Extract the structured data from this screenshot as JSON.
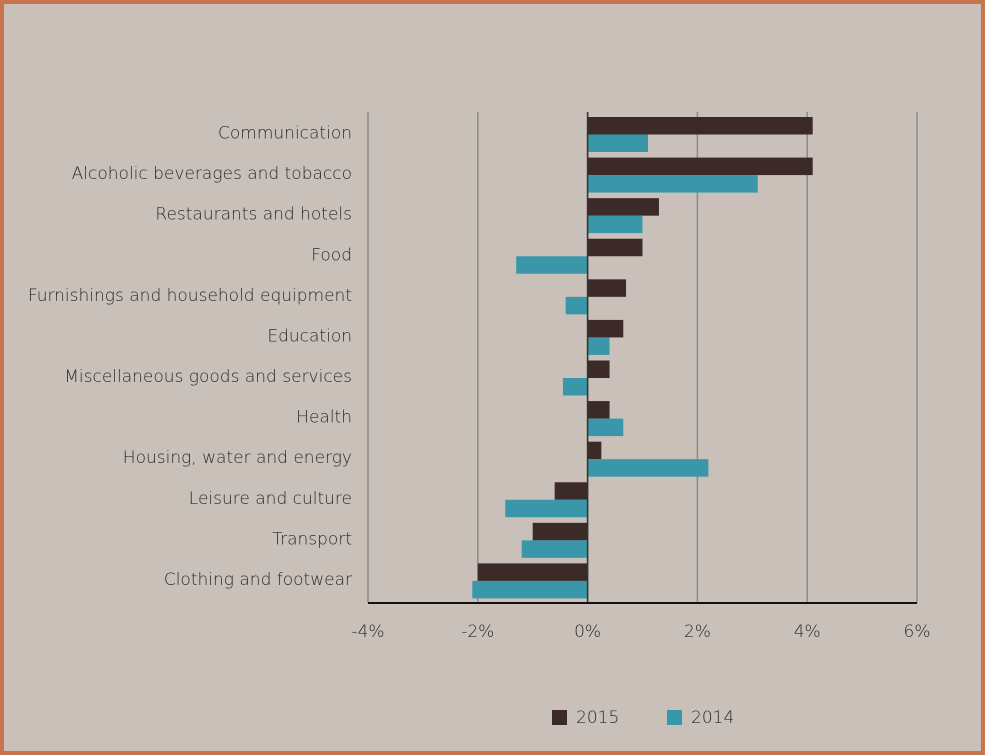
{
  "chart_data": {
    "type": "hbar",
    "categories": [
      "Communication",
      "Alcoholic beverages and tobacco",
      "Restaurants and hotels",
      "Food",
      "Furnishings and household equipment",
      "Education",
      "Miscellaneous goods and services",
      "Health",
      "Housing, water and energy",
      "Leisure and culture",
      "Transport",
      "Clothing and footwear"
    ],
    "series": [
      {
        "name": "2015",
        "color": "#3b2a28",
        "values": [
          4.1,
          4.1,
          1.3,
          1.0,
          0.7,
          0.65,
          0.4,
          0.4,
          0.25,
          -0.6,
          -1.0,
          -2.0
        ]
      },
      {
        "name": "2014",
        "color": "#3a97a9",
        "values": [
          1.1,
          3.1,
          1.0,
          -1.3,
          -0.4,
          0.4,
          -0.45,
          0.65,
          2.2,
          -1.5,
          -1.2,
          -2.1
        ]
      }
    ],
    "xlim": [
      -4,
      6
    ],
    "xticks": [
      {
        "value": -4,
        "label": "-4%"
      },
      {
        "value": -2,
        "label": "-2%"
      },
      {
        "value": 0,
        "label": "0%"
      },
      {
        "value": 2,
        "label": "2%"
      },
      {
        "value": 4,
        "label": "4%"
      },
      {
        "value": 6,
        "label": "6%"
      }
    ],
    "grid": true,
    "legend": "bottom"
  }
}
